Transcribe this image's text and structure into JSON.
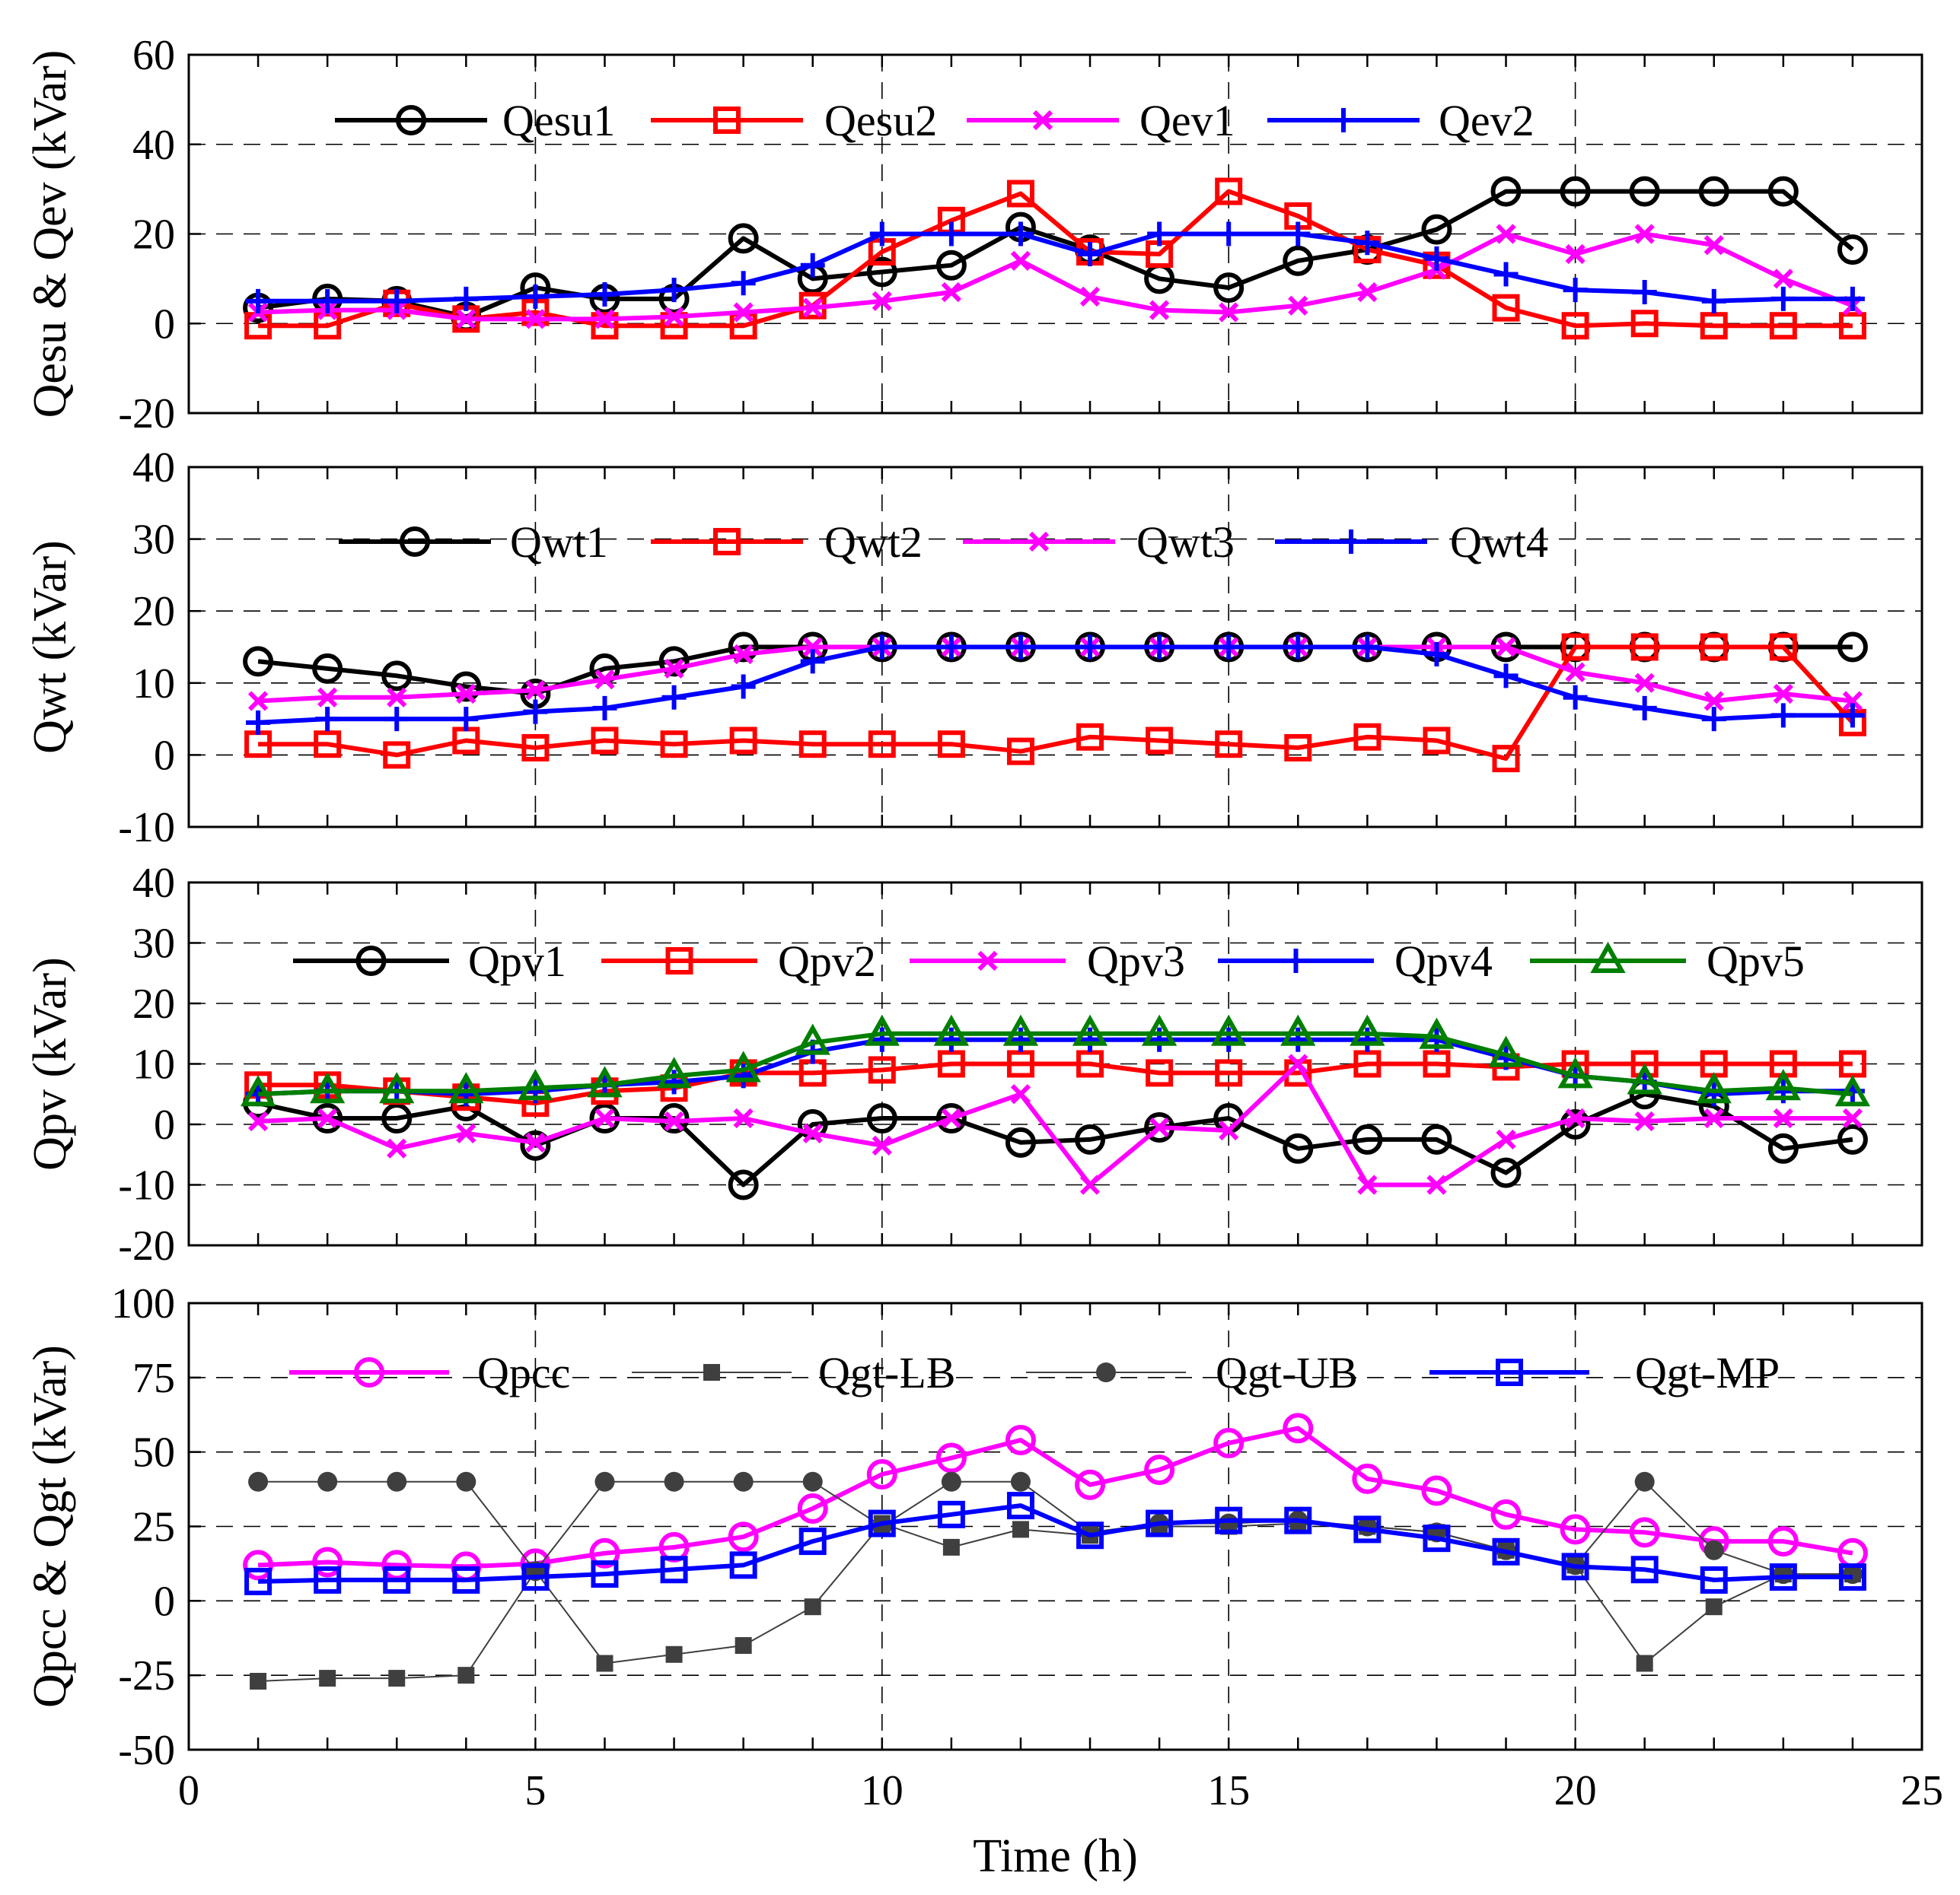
{
  "chart_data": [
    {
      "type": "line",
      "ylabel": "Qesu & Qev (kVar)",
      "xlim": [
        0,
        25
      ],
      "ylim": [
        -20,
        60
      ],
      "yticks": [
        -20,
        0,
        20,
        40,
        60
      ],
      "legend_position": "top",
      "x": [
        1,
        2,
        3,
        4,
        5,
        6,
        7,
        8,
        9,
        10,
        11,
        12,
        13,
        14,
        15,
        16,
        17,
        18,
        19,
        20,
        21,
        22,
        23,
        24
      ],
      "series": [
        {
          "name": "Qesu1",
          "color": "#000000",
          "marker": "circle",
          "values": [
            3.5,
            5.5,
            5,
            1.5,
            8,
            5.5,
            5.5,
            19,
            10,
            11.5,
            13,
            21.5,
            16.5,
            10,
            8,
            14,
            16.5,
            21,
            29.5,
            29.5,
            29.5,
            29.5,
            29.5,
            16.5
          ]
        },
        {
          "name": "Qesu2",
          "color": "#ff0000",
          "marker": "square",
          "values": [
            -0.5,
            -0.5,
            4.5,
            1,
            2.5,
            -0.5,
            -0.5,
            -0.5,
            4,
            16,
            23,
            29,
            16,
            15.5,
            29.5,
            24,
            16.5,
            13,
            3.5,
            -0.5,
            0,
            -0.5,
            -0.5,
            -0.5
          ]
        },
        {
          "name": "Qev1",
          "color": "#ff00ff",
          "marker": "x",
          "values": [
            2.5,
            3,
            3,
            1,
            1,
            1,
            1.5,
            2.5,
            3.5,
            5,
            7,
            14,
            6,
            3,
            2.5,
            4,
            7,
            12,
            20,
            15.5,
            20,
            17.5,
            10,
            4
          ]
        },
        {
          "name": "Qev2",
          "color": "#0000ff",
          "marker": "plus",
          "values": [
            5,
            5,
            5,
            5.5,
            6,
            6.5,
            7.5,
            9,
            13,
            20,
            20,
            20,
            15.5,
            20,
            20,
            20,
            18,
            14.5,
            11,
            7.5,
            7,
            5,
            5.5,
            5.5
          ]
        }
      ]
    },
    {
      "type": "line",
      "ylabel": "Qwt (kVar)",
      "xlim": [
        0,
        25
      ],
      "ylim": [
        -10,
        40
      ],
      "yticks": [
        -10,
        0,
        10,
        20,
        30,
        40
      ],
      "legend_position": "top",
      "x": [
        1,
        2,
        3,
        4,
        5,
        6,
        7,
        8,
        9,
        10,
        11,
        12,
        13,
        14,
        15,
        16,
        17,
        18,
        19,
        20,
        21,
        22,
        23,
        24
      ],
      "series": [
        {
          "name": "Qwt1",
          "color": "#000000",
          "marker": "circle",
          "values": [
            13,
            12,
            11,
            9.5,
            8.5,
            12,
            13,
            15,
            15,
            15,
            15,
            15,
            15,
            15,
            15,
            15,
            15,
            15,
            15,
            15,
            15,
            15,
            15,
            15
          ]
        },
        {
          "name": "Qwt2",
          "color": "#ff0000",
          "marker": "square",
          "values": [
            1.5,
            1.5,
            0,
            2,
            1,
            2,
            1.5,
            2,
            1.5,
            1.5,
            1.5,
            0.5,
            2.5,
            2,
            1.5,
            1,
            2.5,
            2,
            -0.5,
            15,
            15,
            15,
            15,
            4.5
          ]
        },
        {
          "name": "Qwt3",
          "color": "#ff00ff",
          "marker": "x",
          "values": [
            7.5,
            8,
            8,
            8.5,
            9,
            10.5,
            12,
            14,
            15,
            15,
            15,
            15,
            15,
            15,
            15,
            15,
            15,
            15,
            15,
            11.5,
            10,
            7.5,
            8.5,
            7.5
          ]
        },
        {
          "name": "Qwt4",
          "color": "#0000ff",
          "marker": "plus",
          "values": [
            4.5,
            5,
            5,
            5,
            6,
            6.5,
            8,
            9.5,
            13,
            15,
            15,
            15,
            15,
            15,
            15,
            15,
            15,
            14,
            11,
            8,
            6.5,
            5,
            5.5,
            5.5
          ]
        }
      ]
    },
    {
      "type": "line",
      "ylabel": "Qpv (kVar)",
      "xlim": [
        0,
        25
      ],
      "ylim": [
        -20,
        40
      ],
      "yticks": [
        -20,
        -10,
        0,
        10,
        20,
        30,
        40
      ],
      "legend_position": "top",
      "x": [
        1,
        2,
        3,
        4,
        5,
        6,
        7,
        8,
        9,
        10,
        11,
        12,
        13,
        14,
        15,
        16,
        17,
        18,
        19,
        20,
        21,
        22,
        23,
        24
      ],
      "series": [
        {
          "name": "Qpv1",
          "color": "#000000",
          "marker": "circle",
          "values": [
            3.5,
            1,
            1,
            3,
            -3.5,
            1,
            1,
            -10,
            0,
            1,
            1,
            -3,
            -2.5,
            -0.5,
            1,
            -4,
            -2.5,
            -2.5,
            -8,
            0,
            5,
            3,
            -4,
            -2.5
          ]
        },
        {
          "name": "Qpv2",
          "color": "#ff0000",
          "marker": "square",
          "values": [
            6.5,
            6.5,
            5.5,
            4.5,
            3.5,
            5.5,
            6,
            8.5,
            8.5,
            9,
            10,
            10,
            10,
            8.5,
            8.5,
            8.5,
            10,
            10,
            9.5,
            10,
            10,
            10,
            10,
            10
          ]
        },
        {
          "name": "Qpv3",
          "color": "#ff00ff",
          "marker": "x",
          "values": [
            0.5,
            1,
            -4,
            -1.5,
            -3,
            1,
            0.5,
            1,
            -1.5,
            -3.5,
            1,
            5,
            -10,
            -0.5,
            -1,
            10,
            -10,
            -10,
            -2.5,
            1,
            0.5,
            1,
            1,
            1
          ]
        },
        {
          "name": "Qpv4",
          "color": "#0000ff",
          "marker": "plus",
          "values": [
            5,
            5.5,
            5.5,
            5,
            5.5,
            6.5,
            7,
            8,
            12,
            14,
            14,
            14,
            14,
            14,
            14,
            14,
            14,
            14,
            11,
            8,
            7,
            5,
            5.5,
            5.5
          ]
        },
        {
          "name": "Qpv5",
          "color": "#007f00",
          "marker": "triangle",
          "values": [
            5,
            5.5,
            5.5,
            5.5,
            6,
            6.5,
            8,
            9,
            13.5,
            15,
            15,
            15,
            15,
            15,
            15,
            15,
            15,
            14.5,
            11.5,
            8,
            7,
            5.5,
            6,
            5
          ]
        }
      ]
    },
    {
      "type": "line",
      "ylabel": "Qpcc & Qgt (kVar)",
      "xlabel": "Time (h)",
      "xlim": [
        0,
        25
      ],
      "ylim": [
        -50,
        100
      ],
      "xticks": [
        0,
        5,
        10,
        15,
        20,
        25
      ],
      "yticks": [
        -50,
        -25,
        0,
        25,
        50,
        75,
        100
      ],
      "legend_position": "top",
      "x": [
        1,
        2,
        3,
        4,
        5,
        6,
        7,
        8,
        9,
        10,
        11,
        12,
        13,
        14,
        15,
        16,
        17,
        18,
        19,
        20,
        21,
        22,
        23,
        24
      ],
      "series": [
        {
          "name": "Qpcc",
          "color": "#ff00ff",
          "marker": "circle",
          "values": [
            12,
            13,
            12,
            11.5,
            12.5,
            16,
            18,
            21.5,
            31,
            42.5,
            48,
            54,
            39,
            44,
            53,
            58,
            41,
            37,
            29,
            24,
            23,
            20,
            20,
            16
          ]
        },
        {
          "name": "Qgt-LB",
          "color": "#3f3f3f",
          "marker": "filled-square",
          "values": [
            -27,
            -26,
            -26,
            -25,
            10,
            -21,
            -18,
            -15,
            -2,
            26,
            18,
            24,
            22,
            25,
            25,
            26,
            25,
            23,
            17,
            12,
            -21,
            -2,
            9,
            9
          ]
        },
        {
          "name": "Qgt-UB",
          "color": "#3f3f3f",
          "marker": "filled-circle",
          "values": [
            40,
            40,
            40,
            40,
            10,
            40,
            40,
            40,
            40,
            25,
            40,
            40,
            23,
            26,
            26,
            27,
            25,
            23,
            17,
            12,
            40,
            17,
            9,
            9
          ]
        },
        {
          "name": "Qgt-MP",
          "color": "#0000ff",
          "marker": "square",
          "values": [
            6.5,
            7,
            7,
            7,
            8,
            9,
            10.5,
            12,
            20,
            26,
            29,
            32,
            22,
            26,
            27,
            27,
            24,
            21,
            16.5,
            11.5,
            10.5,
            7,
            8,
            8
          ]
        }
      ]
    }
  ]
}
